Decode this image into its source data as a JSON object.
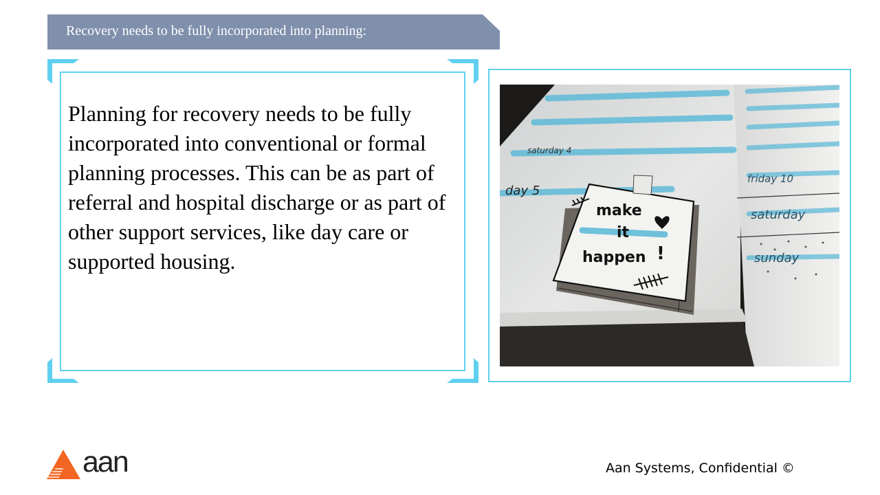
{
  "slide": {
    "title": "Recovery needs to be fully incorporated into planning:",
    "body": "Planning for recovery needs to be fully incorporated into conventional or formal planning processes.  This can be as part of referral and hospital discharge or as part of other support services, like day care or supported housing.",
    "footer": "Aan Systems, Confidential ©"
  },
  "logo": {
    "text": "aan"
  },
  "photo": {
    "note_lines": [
      "make",
      "it",
      "happen",
      "!"
    ],
    "days": [
      "saturday",
      "sunday",
      "friday 10",
      "day 5",
      "saturday 4"
    ]
  },
  "colors": {
    "banner": "#7f8fac",
    "frame_accent": "#5fd0f0",
    "logo_orange": "#f26522"
  }
}
